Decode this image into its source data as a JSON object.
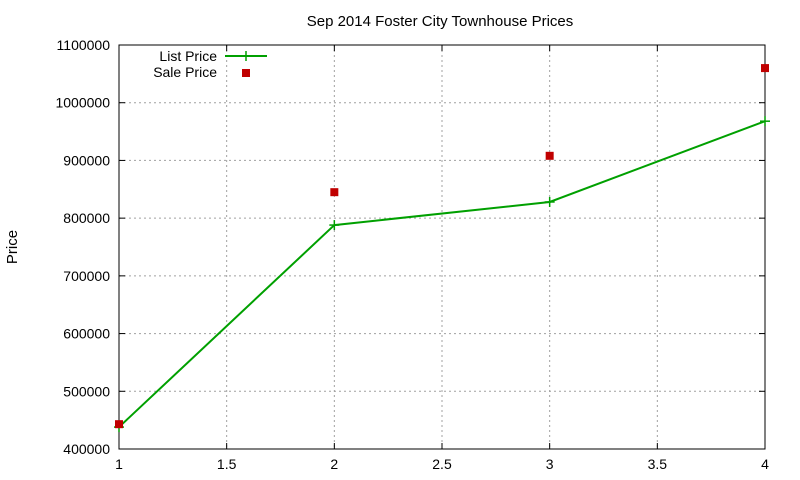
{
  "chart_data": {
    "type": "line",
    "title": "Sep 2014 Foster City Townhouse Prices",
    "xlabel": "",
    "ylabel": "Price",
    "xlim": [
      1,
      4
    ],
    "ylim": [
      400000,
      1100000
    ],
    "x_ticks": [
      "1",
      "1.5",
      "2",
      "2.5",
      "3",
      "3.5",
      "4"
    ],
    "y_ticks": [
      "400000",
      "500000",
      "600000",
      "700000",
      "800000",
      "900000",
      "1000000",
      "1100000"
    ],
    "grid": true,
    "legend_position": "top-left",
    "series": [
      {
        "name": "List Price",
        "style": "line-with-plus-markers",
        "color": "#00a000",
        "points": [
          {
            "x": 1,
            "y": 438000
          },
          {
            "x": 2,
            "y": 788000
          },
          {
            "x": 3,
            "y": 828000
          },
          {
            "x": 4,
            "y": 968000
          }
        ]
      },
      {
        "name": "Sale Price",
        "style": "square-markers",
        "color": "#c00000",
        "points": [
          {
            "x": 1,
            "y": 443000
          },
          {
            "x": 2,
            "y": 845000
          },
          {
            "x": 3,
            "y": 908000
          },
          {
            "x": 4,
            "y": 1060000
          }
        ]
      }
    ]
  }
}
